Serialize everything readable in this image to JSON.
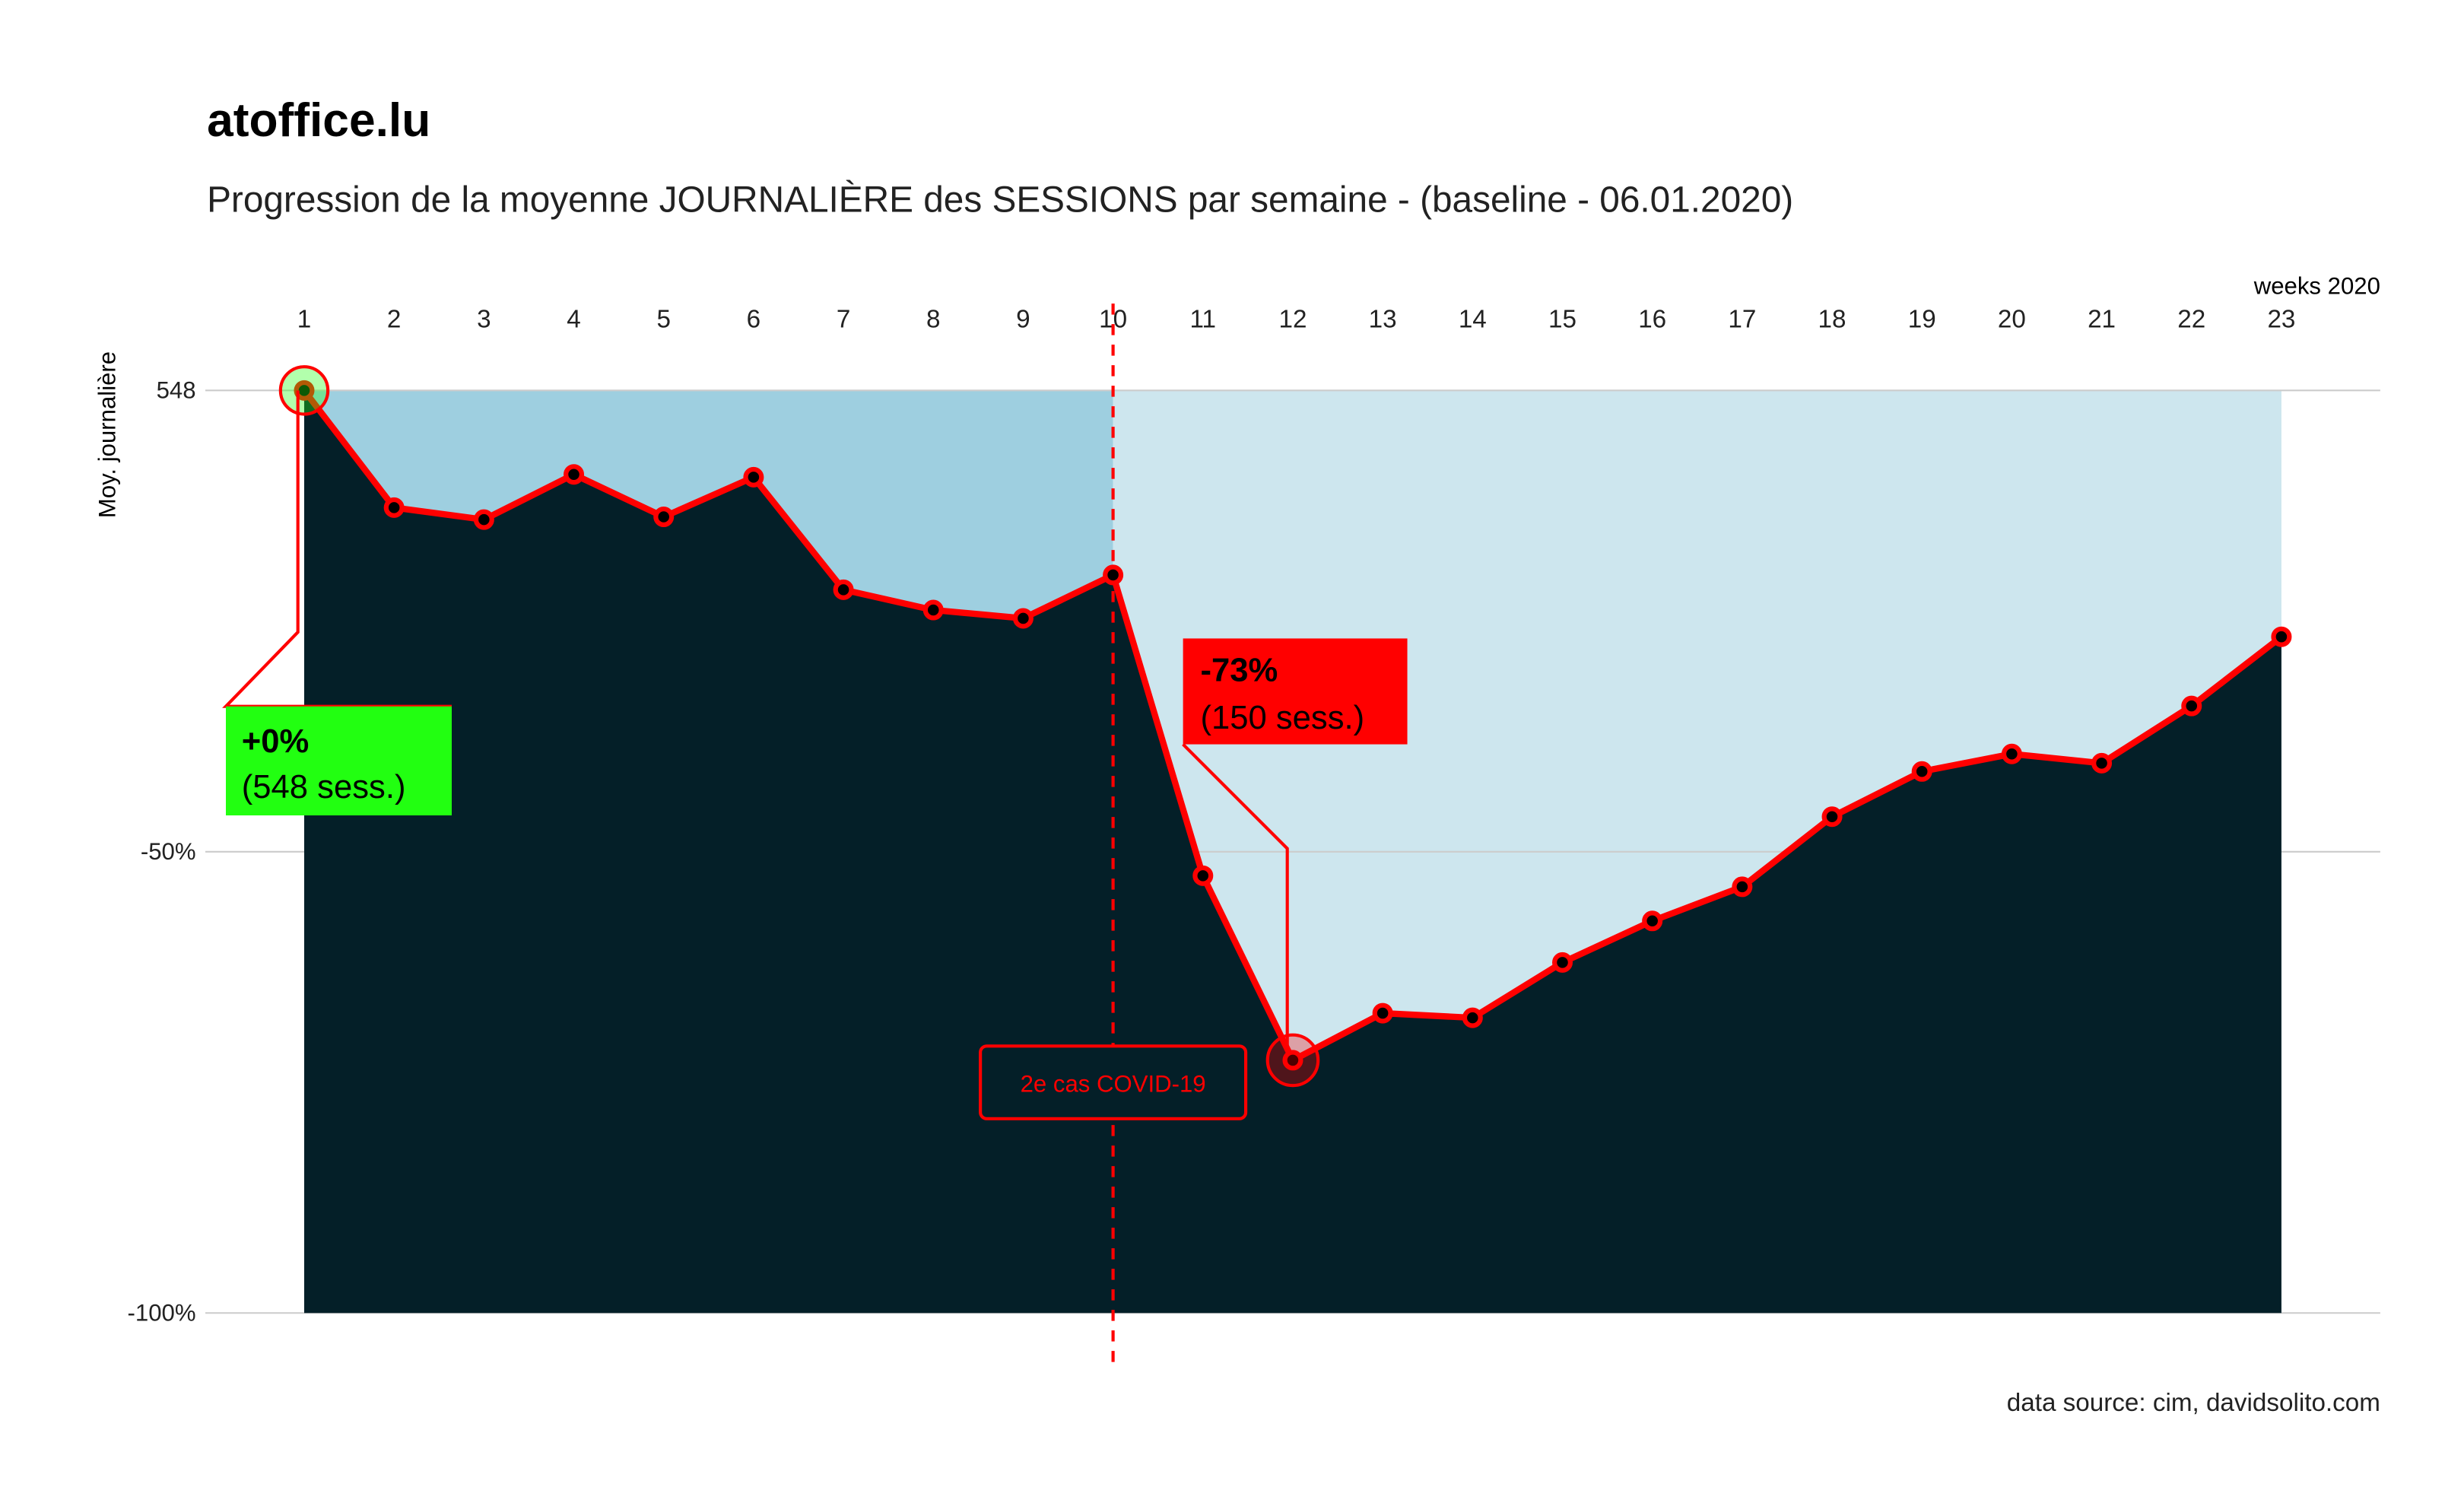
{
  "chart_data": {
    "type": "line",
    "title": "atoffice.lu",
    "subtitle": "Progression de la moyenne JOURNALIÈRE des SESSIONS par semaine - (baseline - 06.01.2020)",
    "x_label": "weeks 2020",
    "y_label": "Moy. journalière",
    "caption": "data source: cim, davidsolito.com",
    "x": [
      1,
      2,
      3,
      4,
      5,
      6,
      7,
      8,
      9,
      10,
      11,
      12,
      13,
      14,
      15,
      16,
      17,
      18,
      19,
      20,
      21,
      22,
      23
    ],
    "series": [
      {
        "name": "sessions",
        "color": "#ff0000",
        "values": [
          0,
          -12.7,
          -14.0,
          -9.1,
          -13.7,
          -9.4,
          -21.6,
          -23.8,
          -24.7,
          -20.0,
          -52.6,
          -72.6,
          -67.5,
          -68.0,
          -62.0,
          -57.5,
          -53.8,
          -46.2,
          -41.3,
          -39.4,
          -40.4,
          -34.2,
          -26.7
        ]
      }
    ],
    "xlim": [
      -0.1,
      24.1
    ],
    "xticks": [
      1,
      2,
      3,
      4,
      5,
      6,
      7,
      8,
      9,
      10,
      11,
      12,
      13,
      14,
      15,
      16,
      17,
      18,
      19,
      20,
      21,
      22,
      23
    ],
    "ylim": [
      -100,
      0
    ],
    "yticks": [
      {
        "value": 0,
        "label": "548"
      },
      {
        "value": -50,
        "label": "-50%"
      },
      {
        "value": -100,
        "label": "-100%"
      }
    ],
    "grid": true,
    "vline": {
      "x": 10,
      "label": "2e cas COVID-19",
      "color": "#ff0000"
    },
    "annotations": [
      {
        "label": "+0%",
        "sublabel": "(548 sess.)",
        "color": "#22ff11"
      },
      {
        "label": "-73%",
        "sublabel": "(150 sess.)",
        "color": "#ff0000"
      }
    ],
    "area_color": "#041f28",
    "before_color": "#9ecfe0",
    "after_color": "#cde6ee"
  }
}
